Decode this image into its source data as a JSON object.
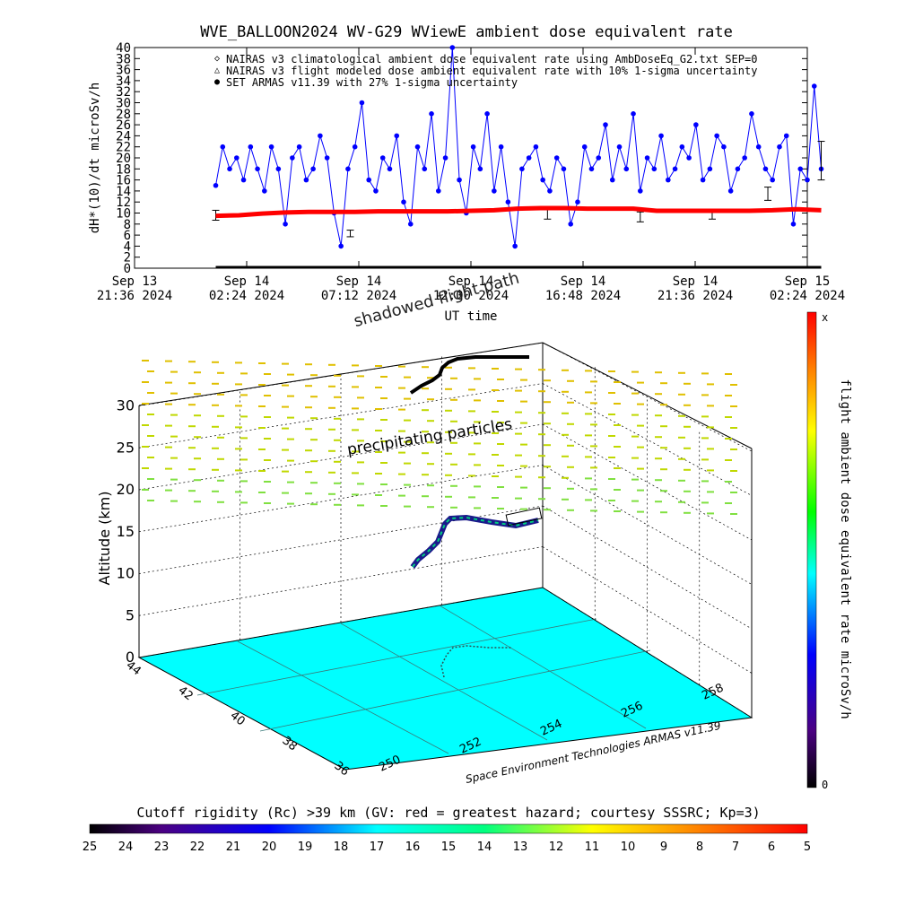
{
  "chart_data": [
    {
      "type": "line",
      "title": "WVE_BALLOON2024 WV-G29 WViewE ambient dose equivalent rate",
      "xlabel": "UT time",
      "ylabel": "dH*(10)/dt microSv/h",
      "ylim": [
        0,
        40
      ],
      "yticks": [
        0,
        2,
        4,
        6,
        8,
        10,
        12,
        14,
        16,
        18,
        20,
        22,
        24,
        26,
        28,
        30,
        32,
        34,
        36,
        38,
        40
      ],
      "xticks": [
        {
          "date": "Sep 13",
          "time": "21:36 2024"
        },
        {
          "date": "Sep 14",
          "time": "02:24 2024"
        },
        {
          "date": "Sep 14",
          "time": "07:12 2024"
        },
        {
          "date": "Sep 14",
          "time": "12:00 2024"
        },
        {
          "date": "Sep 14",
          "time": "16:48 2024"
        },
        {
          "date": "Sep 14",
          "time": "21:36 2024"
        },
        {
          "date": "Sep 15",
          "time": "02:24 2024"
        }
      ],
      "legend": [
        {
          "marker": "◇",
          "color": "#ff0000",
          "label": "NAIRAS v3 climatological ambient dose equivalent rate using AmbDoseEq_G2.txt SEP=0"
        },
        {
          "marker": "△",
          "color": "#000000",
          "label": "NAIRAS v3 flight modeled dose ambient equivalent rate with 10% 1-sigma uncertainty"
        },
        {
          "marker": "●",
          "color": "#0000ff",
          "label": "SET ARMAS v11.39 with 27% 1-sigma uncertainty"
        }
      ],
      "legend_position": "top-left",
      "series": [
        {
          "name": "SET ARMAS v11.39 with 27% 1-sigma uncertainty",
          "color": "#0000ff",
          "hours": [
            3.5,
            3.8,
            4.1,
            4.4,
            4.7,
            5.0,
            5.3,
            5.6,
            5.9,
            6.2,
            6.5,
            6.8,
            7.1,
            7.4,
            7.7,
            8.0,
            8.3,
            8.6,
            8.9,
            9.2,
            9.5,
            9.8,
            10.1,
            10.4,
            10.7,
            11.0,
            11.3,
            11.6,
            11.9,
            12.2,
            12.5,
            12.8,
            13.1,
            13.4,
            13.7,
            14.0,
            14.3,
            14.6,
            14.9,
            15.2,
            15.5,
            15.8,
            16.1,
            16.4,
            16.7,
            17.0,
            17.3,
            17.6,
            17.9,
            18.2,
            18.5,
            18.8,
            19.1,
            19.4,
            19.7,
            20.0,
            20.3,
            20.6,
            20.9,
            21.2,
            21.5,
            21.8,
            22.1,
            22.4,
            22.7,
            23.0,
            23.3,
            23.6,
            23.9,
            24.2,
            24.5,
            24.8,
            25.1,
            25.4,
            25.7,
            26.0,
            26.3,
            26.6,
            26.9,
            27.2,
            27.5,
            27.8,
            28.1,
            28.4,
            28.7,
            29.0,
            29.3,
            29.6
          ],
          "values": [
            15,
            22,
            18,
            20,
            16,
            22,
            18,
            14,
            22,
            18,
            8,
            20,
            22,
            16,
            18,
            24,
            20,
            10,
            4,
            18,
            22,
            30,
            16,
            14,
            20,
            18,
            24,
            12,
            8,
            22,
            18,
            28,
            14,
            20,
            40,
            16,
            10,
            22,
            18,
            28,
            14,
            22,
            12,
            4,
            18,
            20,
            22,
            16,
            14,
            20,
            18,
            8,
            12,
            22,
            18,
            20,
            26,
            16,
            22,
            18,
            28,
            14,
            20,
            18,
            24,
            16,
            18,
            22,
            20,
            26,
            16,
            18,
            24,
            22,
            14,
            18,
            20,
            28,
            22,
            18,
            16,
            22,
            24,
            8,
            18,
            16,
            33,
            18
          ],
          "error_bar_hours": [
            3.5,
            9.3,
            17.8,
            21.8,
            24.9,
            27.3,
            29.6
          ],
          "error_bar_values": [
            9.6,
            6.3,
            9.8,
            9.3,
            9.8,
            13.5,
            19.5
          ],
          "error_bar_sigma": [
            0.9,
            0.6,
            0.9,
            0.9,
            0.9,
            1.2,
            3.5
          ]
        },
        {
          "name": "NAIRAS v3 climatological ambient dose equivalent rate using AmbDoseEq_G2.txt SEP=0",
          "color": "#ff0000",
          "hours": [
            3.5,
            4.5,
            5.5,
            6.5,
            7.5,
            8.5,
            9.5,
            10.5,
            11.5,
            12.5,
            13.5,
            14.5,
            15.5,
            16.5,
            17.5,
            18.5,
            19.5,
            20.5,
            21.5,
            22.5,
            23.5,
            24.5,
            25.5,
            26.5,
            27.5,
            28.5,
            29.6
          ],
          "values": [
            9.5,
            9.6,
            9.9,
            10.1,
            10.2,
            10.2,
            10.2,
            10.3,
            10.3,
            10.3,
            10.3,
            10.4,
            10.5,
            10.8,
            10.9,
            10.9,
            10.8,
            10.8,
            10.8,
            10.4,
            10.4,
            10.4,
            10.4,
            10.4,
            10.5,
            10.7,
            10.5
          ]
        },
        {
          "name": "NAIRAS v3 flight modeled dose ambient equivalent rate with 10% 1-sigma uncertainty",
          "color": "#000000",
          "hours": [
            3.5,
            29.6
          ],
          "values": [
            0,
            0
          ]
        }
      ],
      "annotations": [
        "shadowed flight path"
      ]
    },
    {
      "type": "scatter",
      "zlabel": "Altitude (km)",
      "zticks": [
        0,
        5,
        10,
        15,
        20,
        25,
        30
      ],
      "lat_ticks": [
        44,
        42,
        40,
        38,
        36
      ],
      "lon_ticks": [
        250,
        252,
        254,
        256,
        258
      ],
      "annotations": [
        "precipitating particles",
        "Space Environment Technologies ARMAS v11.39"
      ],
      "flight_track": [
        {
          "lon": 254.8,
          "lat": 40.2,
          "alt_km": 11
        },
        {
          "lon": 254.7,
          "lat": 40.4,
          "alt_km": 13
        },
        {
          "lon": 254.6,
          "lat": 40.6,
          "alt_km": 15
        },
        {
          "lon": 254.5,
          "lat": 40.8,
          "alt_km": 17
        },
        {
          "lon": 254.6,
          "lat": 41.0,
          "alt_km": 19
        },
        {
          "lon": 255.2,
          "lat": 41.4,
          "alt_km": 20
        },
        {
          "lon": 256.0,
          "lat": 41.8,
          "alt_km": 21
        }
      ],
      "colorbar": {
        "label": "flight ambient dose equivalent rate microSv/h",
        "top_label": "x",
        "bottom_label": "0"
      }
    },
    {
      "type": "heatmap",
      "title": "Cutoff rigidity (Rc) >39 km (GV: red = greatest hazard; courtesy SSSRC; Kp=3)",
      "colorbar_ticks": [
        25,
        24,
        23,
        22,
        21,
        20,
        19,
        18,
        17,
        16,
        15,
        14,
        13,
        12,
        11,
        10,
        9,
        8,
        7,
        6,
        5
      ],
      "floor_color": "#00ffff"
    }
  ]
}
